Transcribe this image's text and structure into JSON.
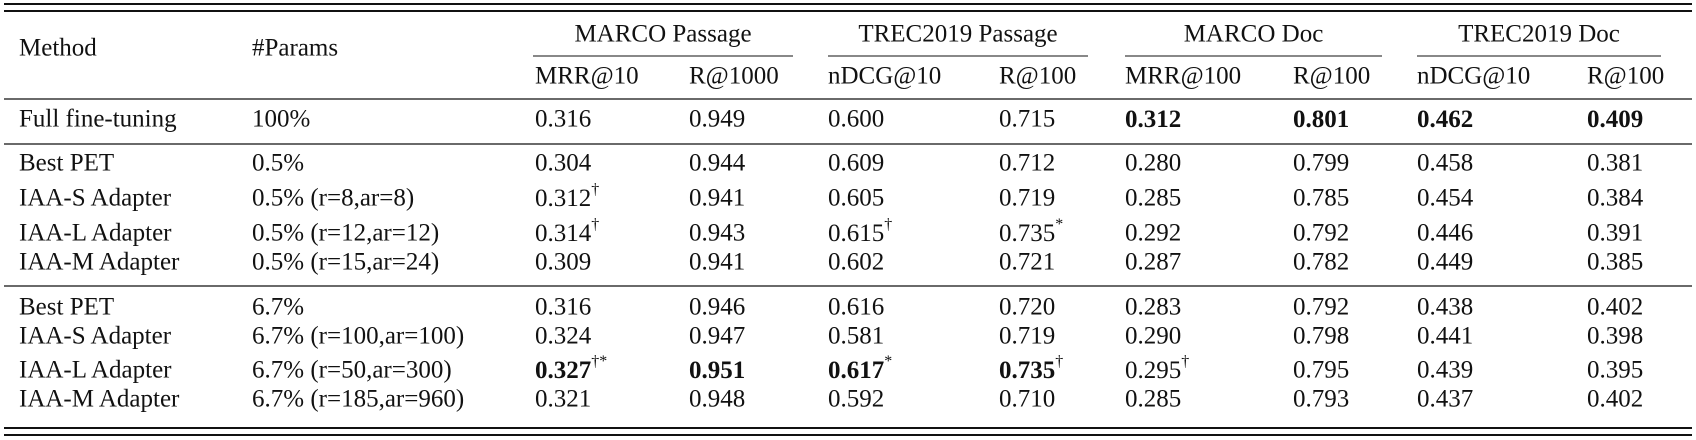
{
  "table": {
    "header": {
      "method": "Method",
      "params": "#Params",
      "groups": [
        {
          "label": "MARCO Passage",
          "metrics": [
            "MRR@10",
            "R@1000"
          ]
        },
        {
          "label": "TREC2019 Passage",
          "metrics": [
            "nDCG@10",
            "R@100"
          ]
        },
        {
          "label": "MARCO Doc",
          "metrics": [
            "MRR@100",
            "R@100"
          ]
        },
        {
          "label": "TREC2019 Doc",
          "metrics": [
            "nDCG@10",
            "R@100"
          ]
        }
      ]
    },
    "sections": [
      {
        "rows": [
          {
            "method": "Full fine-tuning",
            "params": "100%",
            "cells": [
              "0.316",
              "0.949",
              "0.600",
              "0.715",
              {
                "text": "0.312",
                "bold": true
              },
              {
                "text": "0.801",
                "bold": true
              },
              {
                "text": "0.462",
                "bold": true
              },
              {
                "text": "0.409",
                "bold": true
              }
            ]
          }
        ]
      },
      {
        "rows": [
          {
            "method": "Best PET",
            "params": "0.5%",
            "cells": [
              "0.304",
              "0.944",
              "0.609",
              "0.712",
              "0.280",
              "0.799",
              "0.458",
              "0.381"
            ]
          },
          {
            "method": "IAA-S Adapter",
            "params": "0.5% (r=8,ar=8)",
            "cells": [
              {
                "text": "0.312",
                "sup": "†"
              },
              "0.941",
              "0.605",
              "0.719",
              "0.285",
              "0.785",
              "0.454",
              "0.384"
            ]
          },
          {
            "method": "IAA-L Adapter",
            "params": "0.5% (r=12,ar=12)",
            "cells": [
              {
                "text": "0.314",
                "sup": "†"
              },
              "0.943",
              {
                "text": "0.615",
                "sup": "†"
              },
              {
                "text": "0.735",
                "sup": "*"
              },
              "0.292",
              "0.792",
              "0.446",
              "0.391"
            ]
          },
          {
            "method": "IAA-M Adapter",
            "params": "0.5% (r=15,ar=24)",
            "cells": [
              "0.309",
              "0.941",
              "0.602",
              "0.721",
              "0.287",
              "0.782",
              "0.449",
              "0.385"
            ]
          }
        ]
      },
      {
        "rows": [
          {
            "method": "Best PET",
            "params": "6.7%",
            "cells": [
              "0.316",
              "0.946",
              "0.616",
              "0.720",
              "0.283",
              "0.792",
              "0.438",
              "0.402"
            ]
          },
          {
            "method": "IAA-S Adapter",
            "params": "6.7% (r=100,ar=100)",
            "cells": [
              "0.324",
              "0.947",
              "0.581",
              "0.719",
              "0.290",
              "0.798",
              "0.441",
              "0.398"
            ]
          },
          {
            "method": "IAA-L Adapter",
            "params": "6.7% (r=50,ar=300)",
            "cells": [
              {
                "text": "0.327",
                "sup": "†*",
                "bold": true
              },
              {
                "text": "0.951",
                "bold": true
              },
              {
                "text": "0.617",
                "sup": "*",
                "bold": true
              },
              {
                "text": "0.735",
                "sup": "†",
                "bold": true
              },
              {
                "text": "0.295",
                "sup": "†"
              },
              "0.795",
              "0.439",
              "0.395"
            ]
          },
          {
            "method": "IAA-M Adapter",
            "params": "6.7% (r=185,ar=960)",
            "cells": [
              "0.321",
              "0.948",
              "0.592",
              "0.710",
              "0.285",
              "0.793",
              "0.437",
              "0.402"
            ]
          }
        ]
      }
    ]
  }
}
